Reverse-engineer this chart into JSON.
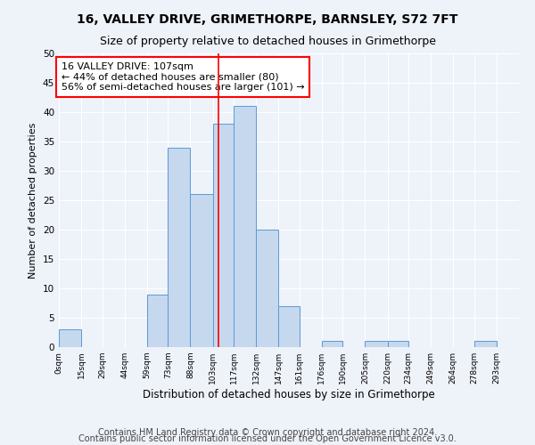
{
  "title1": "16, VALLEY DRIVE, GRIMETHORPE, BARNSLEY, S72 7FT",
  "title2": "Size of property relative to detached houses in Grimethorpe",
  "xlabel": "Distribution of detached houses by size in Grimethorpe",
  "ylabel": "Number of detached properties",
  "bin_labels": [
    "0sqm",
    "15sqm",
    "29sqm",
    "44sqm",
    "59sqm",
    "73sqm",
    "88sqm",
    "103sqm",
    "117sqm",
    "132sqm",
    "147sqm",
    "161sqm",
    "176sqm",
    "190sqm",
    "205sqm",
    "220sqm",
    "234sqm",
    "249sqm",
    "264sqm",
    "278sqm",
    "293sqm"
  ],
  "bar_heights": [
    3,
    0,
    0,
    0,
    9,
    34,
    26,
    38,
    41,
    20,
    7,
    0,
    1,
    0,
    1,
    1,
    0,
    0,
    0,
    1,
    0
  ],
  "bin_edges": [
    0,
    15,
    29,
    44,
    59,
    73,
    88,
    103,
    117,
    132,
    147,
    161,
    176,
    190,
    205,
    220,
    234,
    249,
    264,
    278,
    293,
    308
  ],
  "bar_color": "#c5d8ee",
  "bar_edge_color": "#5b9bd5",
  "vline_x": 107,
  "vline_color": "red",
  "annotation_text": "16 VALLEY DRIVE: 107sqm\n← 44% of detached houses are smaller (80)\n56% of semi-detached houses are larger (101) →",
  "ylim": [
    0,
    50
  ],
  "yticks": [
    0,
    5,
    10,
    15,
    20,
    25,
    30,
    35,
    40,
    45,
    50
  ],
  "footnote1": "Contains HM Land Registry data © Crown copyright and database right 2024.",
  "footnote2": "Contains public sector information licensed under the Open Government Licence v3.0.",
  "bg_color": "#eef2f9",
  "plot_bg_color": "#eef2f9",
  "title1_fontsize": 10,
  "title2_fontsize": 9,
  "xlabel_fontsize": 8.5,
  "ylabel_fontsize": 8,
  "annotation_fontsize": 8,
  "footnote_fontsize": 7
}
